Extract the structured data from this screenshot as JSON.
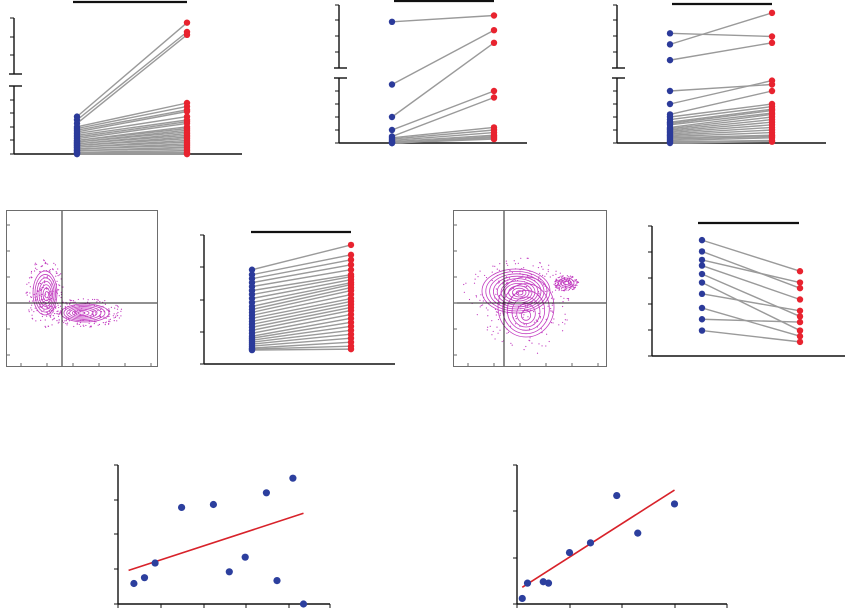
{
  "colors": {
    "pre": "#2b3a9a",
    "post": "#e8232f",
    "connector": "#9a9a9a",
    "fit_line": "#d8222a",
    "scatter_point": "#2c3f9e",
    "contour": "#c23cc0",
    "axis": "#111111"
  },
  "chart_data": [
    {
      "type": "scatter",
      "subtype": "paired-dot",
      "y_axis": "broken",
      "series": [
        {
          "values": [
            22,
            20,
            18,
            16,
            15,
            14,
            13,
            12,
            11,
            10,
            9,
            8,
            8,
            7,
            7,
            6,
            6,
            5,
            5,
            4,
            4,
            3,
            3,
            2,
            2,
            1,
            1,
            0,
            0
          ]
        },
        {
          "values": [
            95,
            85,
            82,
            30,
            28,
            26,
            25,
            22,
            20,
            19,
            18,
            16,
            15,
            14,
            13,
            12,
            11,
            10,
            9,
            8,
            7,
            6,
            5,
            4,
            3,
            2,
            1,
            0,
            0
          ]
        }
      ]
    },
    {
      "type": "scatter",
      "subtype": "paired-dot",
      "y_axis": "broken",
      "series": [
        {
          "values": [
            72,
            45,
            20,
            10,
            5,
            4,
            3,
            2,
            1,
            0,
            0,
            0
          ]
        },
        {
          "values": [
            75,
            68,
            62,
            40,
            35,
            12,
            10,
            8,
            6,
            5,
            4,
            3
          ]
        }
      ]
    },
    {
      "type": "scatter",
      "subtype": "paired-dot",
      "y_axis": "broken",
      "series": [
        {
          "values": [
            72,
            65,
            55,
            40,
            30,
            22,
            20,
            18,
            16,
            15,
            14,
            12,
            11,
            10,
            9,
            8,
            7,
            6,
            5,
            4,
            3,
            2,
            1,
            0
          ]
        },
        {
          "values": [
            70,
            85,
            66,
            45,
            48,
            40,
            30,
            28,
            26,
            25,
            23,
            22,
            20,
            18,
            16,
            14,
            12,
            10,
            8,
            6,
            5,
            4,
            2,
            1
          ]
        }
      ]
    },
    {
      "type": "scatter",
      "subtype": "paired-dot",
      "series": [
        {
          "values": [
            9.5,
            9,
            8.6,
            8.2,
            7.8,
            7.4,
            7,
            6.6,
            6.2,
            5.8,
            5.5,
            5.2,
            4.9,
            4.6,
            4.3,
            4,
            3.7,
            3.4,
            3.1,
            2.8,
            2.6,
            2.4,
            2.2,
            2,
            1.8,
            1.6,
            1.5,
            1.4
          ]
        },
        {
          "values": [
            12,
            11,
            10.5,
            10,
            9.5,
            9,
            8.8,
            8.5,
            8.2,
            8,
            7.7,
            7.4,
            7,
            6.6,
            6.3,
            6,
            5.7,
            5.4,
            5,
            4.6,
            4.2,
            3.8,
            3.4,
            3,
            2.6,
            2.2,
            1.8,
            1.5
          ]
        }
      ]
    },
    {
      "type": "scatter",
      "subtype": "paired-dot",
      "series": [
        {
          "values": [
            41,
            37,
            34,
            32,
            29,
            26,
            22,
            17,
            13,
            9
          ]
        },
        {
          "values": [
            30,
            24,
            26,
            20,
            14,
            9,
            16,
            7,
            12,
            5
          ]
        }
      ]
    },
    {
      "type": "scatter",
      "subtype": "correlation",
      "x": [
        1,
        3,
        5,
        10,
        16,
        19,
        22,
        26,
        28,
        31,
        33
      ],
      "y": [
        14,
        18,
        28,
        66,
        68,
        22,
        32,
        76,
        16,
        86,
        0
      ],
      "trend_line": {
        "x": [
          0,
          33
        ],
        "y": [
          23,
          62
        ]
      },
      "xlim": [
        -2,
        38
      ],
      "ylim": [
        0,
        95
      ]
    },
    {
      "type": "scatter",
      "subtype": "correlation",
      "x": [
        1,
        2,
        5,
        6,
        10,
        14,
        19,
        23,
        30
      ],
      "y": [
        4,
        15,
        16,
        15,
        37,
        44,
        78,
        51,
        72
      ],
      "trend_line": {
        "x": [
          1,
          30
        ],
        "y": [
          12,
          82
        ]
      },
      "xlim": [
        0,
        40
      ],
      "ylim": [
        0,
        100
      ]
    }
  ]
}
